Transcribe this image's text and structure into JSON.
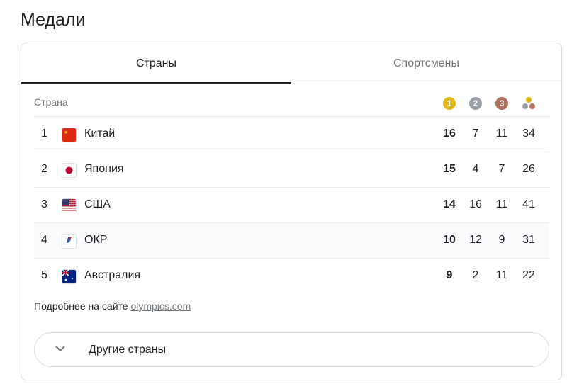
{
  "title": "Медали",
  "tabs": [
    {
      "label": "Страны"
    },
    {
      "label": "Спортсмены"
    }
  ],
  "table": {
    "country_header": "Страна",
    "medal_icons": [
      "gold-medal-icon",
      "silver-medal-icon",
      "bronze-medal-icon",
      "total-medals-icon"
    ],
    "medal_labels": [
      "1",
      "2",
      "3"
    ],
    "colors": {
      "gold": "#e2b714",
      "silver": "#9aa0a6",
      "bronze": "#b0705a"
    },
    "rows": [
      {
        "rank": "1",
        "country": "Китай",
        "flag": "china-flag",
        "gold": "16",
        "silver": "7",
        "bronze": "11",
        "total": "34"
      },
      {
        "rank": "2",
        "country": "Япония",
        "flag": "japan-flag",
        "gold": "15",
        "silver": "4",
        "bronze": "7",
        "total": "26"
      },
      {
        "rank": "3",
        "country": "США",
        "flag": "usa-flag",
        "gold": "14",
        "silver": "16",
        "bronze": "11",
        "total": "41"
      },
      {
        "rank": "4",
        "country": "ОКР",
        "flag": "roc-flag",
        "gold": "10",
        "silver": "12",
        "bronze": "9",
        "total": "31"
      },
      {
        "rank": "5",
        "country": "Австралия",
        "flag": "australia-flag",
        "gold": "9",
        "silver": "2",
        "bronze": "11",
        "total": "22"
      }
    ]
  },
  "footer": {
    "text": "Подробнее на сайте ",
    "link": "olympics.com"
  },
  "more_button": "Другие страны"
}
